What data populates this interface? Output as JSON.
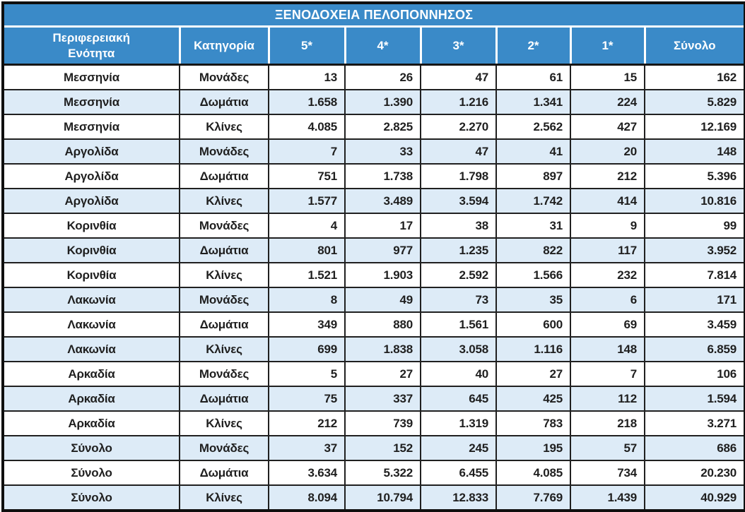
{
  "title": "ΞΕΝΟΔΟΧΕΙΑ ΠΕΛΟΠΟΝΝΗΣΟΣ",
  "colors": {
    "header_bg": "#3a8ac8",
    "header_text": "#ffffff",
    "row_bg": "#ffffff",
    "row_alt_bg": "#ddebf7",
    "grid": "#202020",
    "text": "#1f1f1f"
  },
  "chart_data": {
    "type": "table",
    "title": "ΞΕΝΟΔΟΧΕΙΑ ΠΕΛΟΠΟΝΝΗΣΟΣ",
    "columns": [
      "Περιφερειακή Ενότητα",
      "Κατηγορία",
      "5*",
      "4*",
      "3*",
      "2*",
      "1*",
      "Σύνολο"
    ],
    "rows": [
      [
        "Μεσσηνία",
        "Μονάδες",
        "13",
        "26",
        "47",
        "61",
        "15",
        "162"
      ],
      [
        "Μεσσηνία",
        "Δωμάτια",
        "1.658",
        "1.390",
        "1.216",
        "1.341",
        "224",
        "5.829"
      ],
      [
        "Μεσσηνία",
        "Κλίνες",
        "4.085",
        "2.825",
        "2.270",
        "2.562",
        "427",
        "12.169"
      ],
      [
        "Αργολίδα",
        "Μονάδες",
        "7",
        "33",
        "47",
        "41",
        "20",
        "148"
      ],
      [
        "Αργολίδα",
        "Δωμάτια",
        "751",
        "1.738",
        "1.798",
        "897",
        "212",
        "5.396"
      ],
      [
        "Αργολίδα",
        "Κλίνες",
        "1.577",
        "3.489",
        "3.594",
        "1.742",
        "414",
        "10.816"
      ],
      [
        "Κορινθία",
        "Μονάδες",
        "4",
        "17",
        "38",
        "31",
        "9",
        "99"
      ],
      [
        "Κορινθία",
        "Δωμάτια",
        "801",
        "977",
        "1.235",
        "822",
        "117",
        "3.952"
      ],
      [
        "Κορινθία",
        "Κλίνες",
        "1.521",
        "1.903",
        "2.592",
        "1.566",
        "232",
        "7.814"
      ],
      [
        "Λακωνία",
        "Μονάδες",
        "8",
        "49",
        "73",
        "35",
        "6",
        "171"
      ],
      [
        "Λακωνία",
        "Δωμάτια",
        "349",
        "880",
        "1.561",
        "600",
        "69",
        "3.459"
      ],
      [
        "Λακωνία",
        "Κλίνες",
        "699",
        "1.838",
        "3.058",
        "1.116",
        "148",
        "6.859"
      ],
      [
        "Αρκαδία",
        "Μονάδες",
        "5",
        "27",
        "40",
        "27",
        "7",
        "106"
      ],
      [
        "Αρκαδία",
        "Δωμάτια",
        "75",
        "337",
        "645",
        "425",
        "112",
        "1.594"
      ],
      [
        "Αρκαδία",
        "Κλίνες",
        "212",
        "739",
        "1.319",
        "783",
        "218",
        "3.271"
      ],
      [
        "Σύνολο",
        "Μονάδες",
        "37",
        "152",
        "245",
        "195",
        "57",
        "686"
      ],
      [
        "Σύνολο",
        "Δωμάτια",
        "3.634",
        "5.322",
        "6.455",
        "4.085",
        "734",
        "20.230"
      ],
      [
        "Σύνολο",
        "Κλίνες",
        "8.094",
        "10.794",
        "12.833",
        "7.769",
        "1.439",
        "40.929"
      ]
    ]
  }
}
